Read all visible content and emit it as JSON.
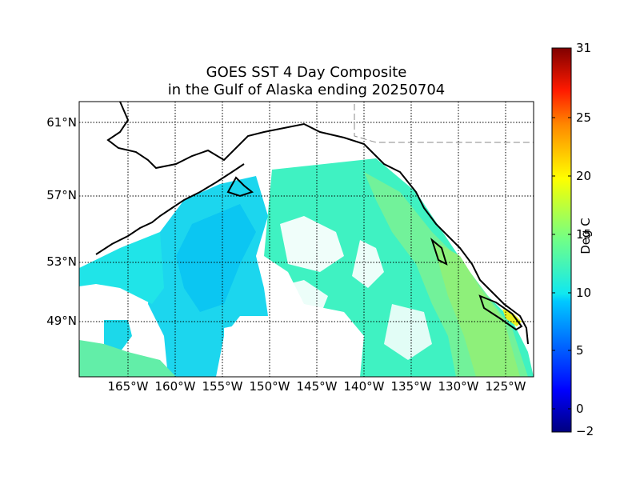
{
  "title": {
    "line1": "GOES SST 4 Day Composite",
    "line2": "in the Gulf of Alaska ending 20250704"
  },
  "map": {
    "lat_labels": [
      "61°N",
      "57°N",
      "53°N",
      "49°N"
    ],
    "lon_labels": [
      "165°W",
      "160°W",
      "155°W",
      "150°W",
      "145°W",
      "140°W",
      "135°W",
      "130°W",
      "125°W"
    ]
  },
  "colorbar": {
    "label": "Deg C",
    "ticks": [
      "31",
      "25",
      "20",
      "15",
      "10",
      "5",
      "0",
      "−2"
    ],
    "min": -2,
    "max": 31,
    "colormap": "jet"
  },
  "colors": {
    "land": "#ffffff",
    "coast": "#000000",
    "no_data": "#ffffff",
    "sst_cool": "#0fd2f0",
    "sst_mid": "#3ff0c0",
    "sst_warm": "#90f070"
  }
}
